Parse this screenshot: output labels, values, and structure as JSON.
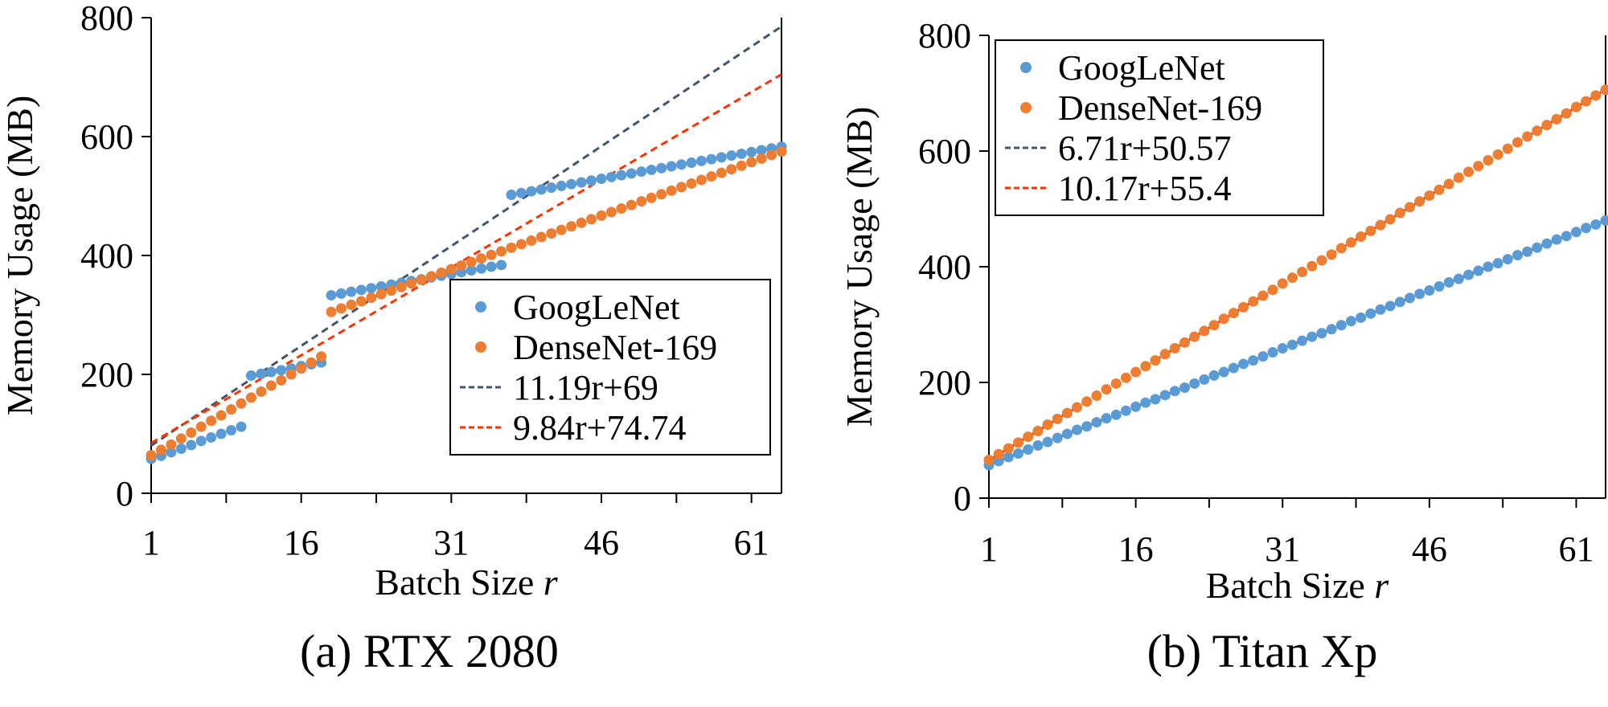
{
  "chart_data": [
    {
      "type": "scatter",
      "caption": "(a) RTX 2080",
      "xlabel": "Batch Size r",
      "ylabel": "Memory Usage (MB)",
      "xlim": [
        1,
        64
      ],
      "ylim": [
        0,
        800
      ],
      "xticks": [
        1,
        16,
        31,
        46,
        61
      ],
      "yticks": [
        0,
        200,
        400,
        600,
        800
      ],
      "legend_position": "bottom-right",
      "x": [
        1,
        2,
        3,
        4,
        5,
        6,
        7,
        8,
        9,
        10,
        11,
        12,
        13,
        14,
        15,
        16,
        17,
        18,
        19,
        20,
        21,
        22,
        23,
        24,
        25,
        26,
        27,
        28,
        29,
        30,
        31,
        32,
        33,
        34,
        35,
        36,
        37,
        38,
        39,
        40,
        41,
        42,
        43,
        44,
        45,
        46,
        47,
        48,
        49,
        50,
        51,
        52,
        53,
        54,
        55,
        56,
        57,
        58,
        59,
        60,
        61,
        62,
        63,
        64
      ],
      "series": [
        {
          "name": "GoogLeNet",
          "kind": "points",
          "color": "#5b9bd5",
          "values": [
            58,
            63,
            69,
            75,
            81,
            88,
            94,
            100,
            106,
            112,
            198,
            201,
            204,
            207,
            210,
            214,
            217,
            220,
            333,
            336,
            339,
            342,
            345,
            348,
            351,
            354,
            357,
            360,
            363,
            366,
            369,
            372,
            375,
            378,
            381,
            384,
            502,
            505,
            508,
            511,
            514,
            517,
            520,
            523,
            526,
            529,
            532,
            535,
            538,
            541,
            544,
            547,
            550,
            553,
            556,
            559,
            562,
            565,
            568,
            571,
            574,
            577,
            580,
            583
          ]
        },
        {
          "name": "DenseNet-169",
          "kind": "points",
          "color": "#ed7d31",
          "values": [
            64,
            73,
            82,
            92,
            102,
            112,
            122,
            131,
            141,
            151,
            161,
            171,
            181,
            190,
            200,
            210,
            220,
            230,
            305,
            311,
            317,
            323,
            329,
            335,
            341,
            347,
            353,
            359,
            365,
            371,
            377,
            383,
            389,
            395,
            401,
            407,
            413,
            419,
            425,
            431,
            437,
            443,
            449,
            455,
            461,
            467,
            473,
            479,
            485,
            491,
            497,
            503,
            509,
            515,
            521,
            527,
            533,
            539,
            545,
            551,
            557,
            563,
            569,
            575
          ]
        },
        {
          "name": "11.19r+69",
          "kind": "fit",
          "color": "#44546a",
          "slope": 11.19,
          "intercept": 69
        },
        {
          "name": "9.84r+74.74",
          "kind": "fit",
          "color": "#ff3300",
          "slope": 9.84,
          "intercept": 74.74
        }
      ]
    },
    {
      "type": "scatter",
      "caption": "(b) Titan Xp",
      "xlabel": "Batch Size r",
      "ylabel": "Memory Usage (MB)",
      "xlim": [
        1,
        64
      ],
      "ylim": [
        0,
        800
      ],
      "xticks": [
        1,
        16,
        31,
        46,
        61
      ],
      "yticks": [
        0,
        200,
        400,
        600,
        800
      ],
      "legend_position": "top-left",
      "x": [
        1,
        2,
        3,
        4,
        5,
        6,
        7,
        8,
        9,
        10,
        11,
        12,
        13,
        14,
        15,
        16,
        17,
        18,
        19,
        20,
        21,
        22,
        23,
        24,
        25,
        26,
        27,
        28,
        29,
        30,
        31,
        32,
        33,
        34,
        35,
        36,
        37,
        38,
        39,
        40,
        41,
        42,
        43,
        44,
        45,
        46,
        47,
        48,
        49,
        50,
        51,
        52,
        53,
        54,
        55,
        56,
        57,
        58,
        59,
        60,
        61,
        62,
        63,
        64
      ],
      "series": [
        {
          "name": "GoogLeNet",
          "kind": "points",
          "color": "#5b9bd5",
          "values": [
            57,
            64,
            71,
            77,
            84,
            91,
            97,
            104,
            111,
            118,
            124,
            131,
            138,
            144,
            151,
            158,
            165,
            171,
            178,
            185,
            191,
            198,
            205,
            212,
            218,
            225,
            232,
            238,
            245,
            252,
            259,
            265,
            272,
            279,
            285,
            292,
            299,
            306,
            312,
            319,
            326,
            332,
            339,
            346,
            353,
            359,
            366,
            373,
            379,
            386,
            393,
            400,
            406,
            413,
            420,
            426,
            433,
            440,
            447,
            453,
            460,
            467,
            473,
            480
          ]
        },
        {
          "name": "DenseNet-169",
          "kind": "points",
          "color": "#ed7d31",
          "values": [
            66,
            76,
            86,
            96,
            106,
            116,
            127,
            137,
            147,
            157,
            167,
            177,
            188,
            198,
            208,
            218,
            228,
            238,
            249,
            259,
            269,
            279,
            289,
            299,
            310,
            320,
            330,
            340,
            350,
            360,
            371,
            381,
            391,
            401,
            411,
            421,
            432,
            442,
            452,
            462,
            472,
            482,
            493,
            503,
            513,
            523,
            533,
            543,
            554,
            564,
            574,
            584,
            594,
            604,
            615,
            625,
            635,
            645,
            655,
            665,
            676,
            686,
            696,
            706
          ]
        },
        {
          "name": "6.71r+50.57",
          "kind": "fit",
          "color": "#44546a",
          "slope": 6.71,
          "intercept": 50.57
        },
        {
          "name": "10.17r+55.4",
          "kind": "fit",
          "color": "#ff3300",
          "slope": 10.17,
          "intercept": 55.4
        }
      ]
    }
  ]
}
